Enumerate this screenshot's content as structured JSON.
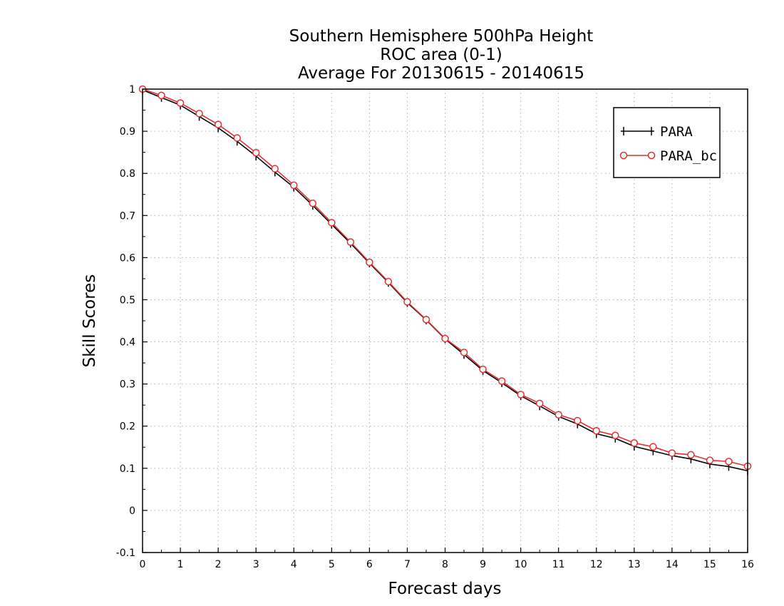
{
  "chart_data": {
    "type": "line",
    "title": [
      "Southern Hemisphere 500hPa Height",
      "ROC area (0-1)",
      "Average For 20130615 - 20140615"
    ],
    "xlabel": "Forecast days",
    "ylabel": "Skill Scores",
    "xlim": [
      0,
      16
    ],
    "ylim": [
      -0.1,
      1
    ],
    "x_ticks": [
      "0",
      "1",
      "2",
      "3",
      "4",
      "5",
      "6",
      "7",
      "8",
      "9",
      "10",
      "11",
      "12",
      "13",
      "14",
      "15",
      "16"
    ],
    "y_ticks": [
      "-0.1",
      "0",
      "0.1",
      "0.2",
      "0.3",
      "0.4",
      "0.5",
      "0.6",
      "0.7",
      "0.8",
      "0.9",
      "1"
    ],
    "grid": true,
    "legend_position": "top-right",
    "x": [
      0,
      0.5,
      1,
      1.5,
      2,
      2.5,
      3,
      3.5,
      4,
      4.5,
      5,
      5.5,
      6,
      6.5,
      7,
      7.5,
      8,
      8.5,
      9,
      9.5,
      10,
      10.5,
      11,
      11.5,
      12,
      12.5,
      13,
      13.5,
      14,
      14.5,
      15,
      15.5,
      16
    ],
    "series": [
      {
        "name": "PARA",
        "color": "#000000",
        "marker": "plus",
        "values": [
          0.998,
          0.98,
          0.962,
          0.935,
          0.908,
          0.876,
          0.841,
          0.803,
          0.767,
          0.724,
          0.679,
          0.634,
          0.587,
          0.541,
          0.493,
          0.452,
          0.407,
          0.37,
          0.332,
          0.303,
          0.272,
          0.248,
          0.223,
          0.205,
          0.182,
          0.171,
          0.152,
          0.141,
          0.13,
          0.122,
          0.11,
          0.104,
          0.094
        ]
      },
      {
        "name": "PARA_bc",
        "color": "#e03030",
        "marker": "circle",
        "values": [
          1.0,
          0.985,
          0.967,
          0.942,
          0.916,
          0.884,
          0.849,
          0.811,
          0.772,
          0.729,
          0.683,
          0.637,
          0.589,
          0.543,
          0.495,
          0.453,
          0.408,
          0.375,
          0.335,
          0.307,
          0.275,
          0.254,
          0.227,
          0.213,
          0.189,
          0.178,
          0.16,
          0.151,
          0.136,
          0.132,
          0.119,
          0.116,
          0.105
        ]
      }
    ]
  }
}
